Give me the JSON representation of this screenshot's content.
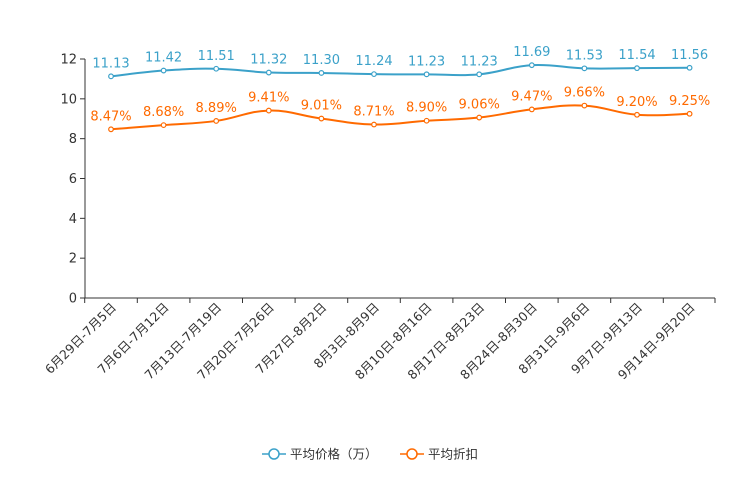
{
  "chart_data": {
    "type": "line",
    "title": "",
    "xlabel": "",
    "ylabel": "",
    "ylim": [
      0,
      12
    ],
    "yticks": [
      0,
      2,
      4,
      6,
      8,
      10,
      12
    ],
    "categories": [
      "6月29日-7月5日",
      "7月6日-7月12日",
      "7月13日-7月19日",
      "7月20日-7月26日",
      "7月27日-8月2日",
      "8月3日-8月9日",
      "8月10日-8月16日",
      "8月17日-8月23日",
      "8月24日-8月30日",
      "8月31日-9月6日",
      "9月7日-9月13日",
      "9月14日-9月20日"
    ],
    "series": [
      {
        "name": "平均价格（万）",
        "color": "#3ba1c9",
        "values": [
          11.13,
          11.42,
          11.51,
          11.32,
          11.3,
          11.24,
          11.23,
          11.23,
          11.69,
          11.53,
          11.54,
          11.56
        ],
        "labels": [
          "11.13",
          "11.42",
          "11.51",
          "11.32",
          "11.30",
          "11.24",
          "11.23",
          "11.23",
          "11.69",
          "11.53",
          "11.54",
          "11.56"
        ]
      },
      {
        "name": "平均折扣",
        "color": "#ff6a00",
        "values": [
          8.47,
          8.68,
          8.89,
          9.41,
          9.01,
          8.71,
          8.9,
          9.06,
          9.47,
          9.66,
          9.2,
          9.25
        ],
        "labels": [
          "8.47%",
          "8.68%",
          "8.89%",
          "9.41%",
          "9.01%",
          "8.71%",
          "8.90%",
          "9.06%",
          "9.47%",
          "9.66%",
          "9.20%",
          "9.25%"
        ]
      }
    ],
    "legend": {
      "position": "bottom-center"
    },
    "grid": false
  }
}
